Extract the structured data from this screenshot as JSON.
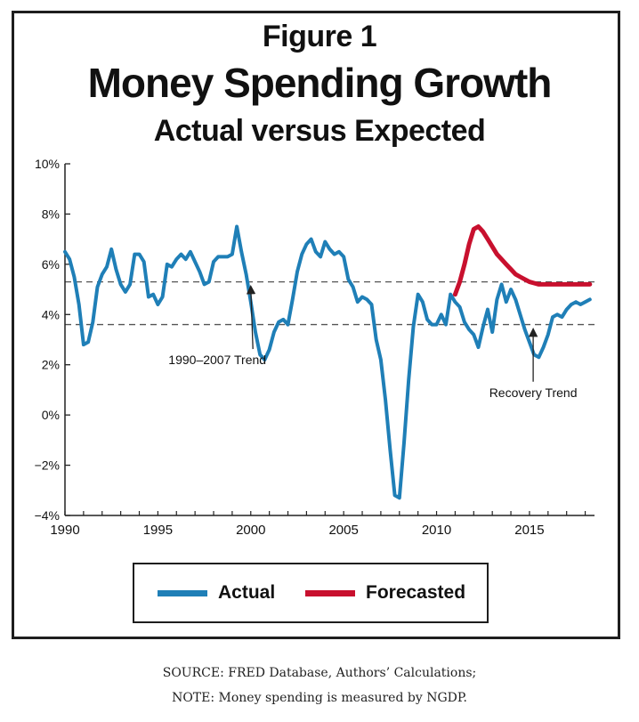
{
  "title": "Figure 1",
  "subtitle": "Money Spending Growth",
  "subtitle2": "Actual versus Expected",
  "legend": {
    "actual": "Actual",
    "forecast": "Forecasted"
  },
  "source_line1": "SOURCE: FRED Database, Authors’ Calculations;",
  "source_line2": "NOTE: Money spending is measured by NGDP.",
  "colors": {
    "actual": "#1f7fb7",
    "forecast": "#c8102e",
    "axis": "#222222",
    "trend": "#555555"
  },
  "chart_data": {
    "type": "line",
    "xlim": [
      1990,
      2018.5
    ],
    "ylim": [
      -4,
      10
    ],
    "x_ticks": [
      1990,
      1995,
      2000,
      2005,
      2010,
      2015
    ],
    "x_tick_labels": [
      "1990",
      "1995",
      "2000",
      "2005",
      "2010",
      "2015"
    ],
    "y_ticks": [
      -4,
      -2,
      0,
      2,
      4,
      6,
      8,
      10
    ],
    "y_tick_labels": [
      "−4%",
      "−2%",
      "0%",
      "2%",
      "4%",
      "6%",
      "8%",
      "10%"
    ],
    "grid": false,
    "series": [
      {
        "name": "Actual",
        "color": "#1f7fb7",
        "x": [
          1990,
          1990.25,
          1990.5,
          1990.75,
          1991,
          1991.25,
          1991.5,
          1991.75,
          1992,
          1992.25,
          1992.5,
          1992.75,
          1993,
          1993.25,
          1993.5,
          1993.75,
          1994,
          1994.25,
          1994.5,
          1994.75,
          1995,
          1995.25,
          1995.5,
          1995.75,
          1996,
          1996.25,
          1996.5,
          1996.75,
          1997,
          1997.25,
          1997.5,
          1997.75,
          1998,
          1998.25,
          1998.5,
          1998.75,
          1999,
          1999.25,
          1999.5,
          1999.75,
          2000,
          2000.25,
          2000.5,
          2000.75,
          2001,
          2001.25,
          2001.5,
          2001.75,
          2002,
          2002.25,
          2002.5,
          2002.75,
          2003,
          2003.25,
          2003.5,
          2003.75,
          2004,
          2004.25,
          2004.5,
          2004.75,
          2005,
          2005.25,
          2005.5,
          2005.75,
          2006,
          2006.25,
          2006.5,
          2006.75,
          2007,
          2007.25,
          2007.5,
          2007.75,
          2008,
          2008.25,
          2008.5,
          2008.75,
          2009,
          2009.25,
          2009.5,
          2009.75,
          2010,
          2010.25,
          2010.5,
          2010.75,
          2011,
          2011.25,
          2011.5,
          2011.75,
          2012,
          2012.25,
          2012.5,
          2012.75,
          2013,
          2013.25,
          2013.5,
          2013.75,
          2014,
          2014.25,
          2014.5,
          2014.75,
          2015,
          2015.25,
          2015.5,
          2015.75,
          2016,
          2016.25,
          2016.5,
          2016.75,
          2017,
          2017.25,
          2017.5,
          2017.75,
          2018,
          2018.25
        ],
        "values": [
          6.5,
          6.2,
          5.5,
          4.4,
          2.8,
          2.9,
          3.7,
          5.1,
          5.6,
          5.9,
          6.6,
          5.8,
          5.2,
          4.9,
          5.2,
          6.4,
          6.4,
          6.1,
          4.7,
          4.8,
          4.4,
          4.7,
          6.0,
          5.9,
          6.2,
          6.4,
          6.2,
          6.5,
          6.1,
          5.7,
          5.2,
          5.3,
          6.1,
          6.3,
          6.3,
          6.3,
          6.4,
          7.5,
          6.5,
          5.6,
          4.5,
          3.3,
          2.4,
          2.2,
          2.6,
          3.3,
          3.7,
          3.8,
          3.6,
          4.6,
          5.7,
          6.4,
          6.8,
          7.0,
          6.5,
          6.3,
          6.9,
          6.6,
          6.4,
          6.5,
          6.3,
          5.4,
          5.1,
          4.5,
          4.7,
          4.6,
          4.4,
          3.0,
          2.2,
          0.6,
          -1.4,
          -3.2,
          -3.3,
          -1.1,
          1.4,
          3.5,
          4.8,
          4.5,
          3.8,
          3.6,
          3.6,
          4.0,
          3.6,
          4.8,
          4.5,
          4.3,
          3.7,
          3.4,
          3.2,
          2.7,
          3.5,
          4.2,
          3.3,
          4.6,
          5.2,
          4.5,
          5.0,
          4.6,
          4.0,
          3.4,
          2.9,
          2.4,
          2.3,
          2.7,
          3.2,
          3.9,
          4.0,
          3.9,
          4.2,
          4.4,
          4.5,
          4.4,
          4.5,
          4.6
        ]
      },
      {
        "name": "Forecasted",
        "color": "#c8102e",
        "x": [
          2011,
          2011.25,
          2011.5,
          2011.75,
          2012,
          2012.25,
          2012.5,
          2012.75,
          2013,
          2013.25,
          2013.5,
          2013.75,
          2014,
          2014.25,
          2014.5,
          2014.75,
          2015,
          2015.25,
          2015.5,
          2015.75,
          2016,
          2016.25,
          2016.5,
          2016.75,
          2017,
          2017.25,
          2017.5,
          2017.75,
          2018,
          2018.25
        ],
        "values": [
          4.8,
          5.3,
          6.0,
          6.8,
          7.4,
          7.5,
          7.3,
          7.0,
          6.7,
          6.4,
          6.2,
          6.0,
          5.8,
          5.6,
          5.5,
          5.4,
          5.3,
          5.25,
          5.2,
          5.2,
          5.2,
          5.2,
          5.2,
          5.2,
          5.2,
          5.2,
          5.2,
          5.2,
          5.2,
          5.2
        ]
      }
    ],
    "reference_lines": [
      {
        "y": 5.3,
        "style": "dashed"
      },
      {
        "y": 3.6,
        "style": "dashed"
      }
    ],
    "annotations": [
      {
        "text": "1990–2007 Trend",
        "x": 1998.2,
        "y": 2.2,
        "arrow_to": [
          2000,
          5.3
        ]
      },
      {
        "text": "Recovery Trend",
        "x": 2015.2,
        "y": 0.9,
        "arrow_to": [
          2015.2,
          3.6
        ]
      }
    ]
  }
}
